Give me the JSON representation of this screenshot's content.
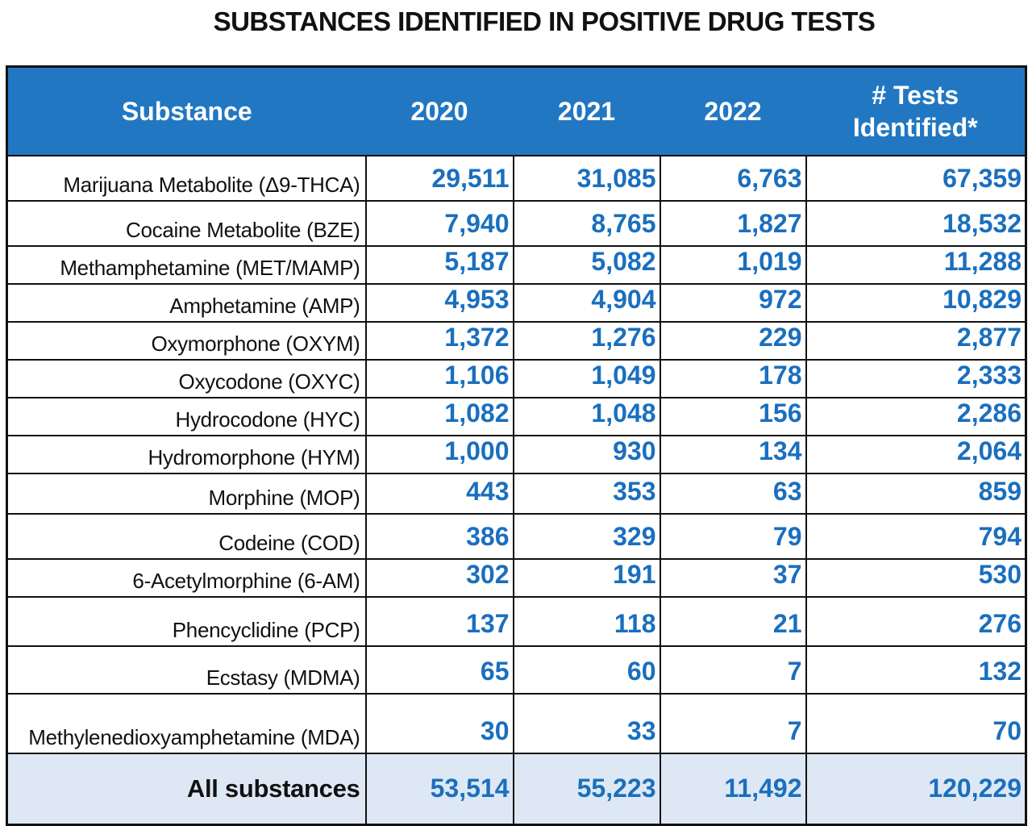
{
  "title": "SUBSTANCES IDENTIFIED IN POSITIVE DRUG TESTS",
  "colors": {
    "header_bg": "#2277c2",
    "number_text": "#1a6fbe",
    "total_row_bg": "#dde8f4"
  },
  "chart_data": {
    "type": "table",
    "title": "SUBSTANCES IDENTIFIED IN POSITIVE DRUG TESTS",
    "columns": [
      "Substance",
      "2020",
      "2021",
      "2022",
      "# Tests Identified*"
    ],
    "rows": [
      [
        "Marijuana Metabolite (Δ9-THCA)",
        "29,511",
        "31,085",
        "6,763",
        "67,359"
      ],
      [
        "Cocaine Metabolite (BZE)",
        "7,940",
        "8,765",
        "1,827",
        "18,532"
      ],
      [
        "Methamphetamine (MET/MAMP)",
        "5,187",
        "5,082",
        "1,019",
        "11,288"
      ],
      [
        "Amphetamine (AMP)",
        "4,953",
        "4,904",
        "972",
        "10,829"
      ],
      [
        "Oxymorphone (OXYM)",
        "1,372",
        "1,276",
        "229",
        "2,877"
      ],
      [
        "Oxycodone (OXYC)",
        "1,106",
        "1,049",
        "178",
        "2,333"
      ],
      [
        "Hydrocodone (HYC)",
        "1,082",
        "1,048",
        "156",
        "2,286"
      ],
      [
        "Hydromorphone (HYM)",
        "1,000",
        "930",
        "134",
        "2,064"
      ],
      [
        "Morphine (MOP)",
        "443",
        "353",
        "63",
        "859"
      ],
      [
        "Codeine (COD)",
        "386",
        "329",
        "79",
        "794"
      ],
      [
        "6-Acetylmorphine (6-AM)",
        "302",
        "191",
        "37",
        "530"
      ],
      [
        "Phencyclidine (PCP)",
        "137",
        "118",
        "21",
        "276"
      ],
      [
        "Ecstasy (MDMA)",
        "65",
        "60",
        "7",
        "132"
      ],
      [
        "Methylenedioxyamphetamine (MDA)",
        "30",
        "33",
        "7",
        "70"
      ]
    ],
    "total": [
      "All substances",
      "53,514",
      "55,223",
      "11,492",
      "120,229"
    ]
  }
}
